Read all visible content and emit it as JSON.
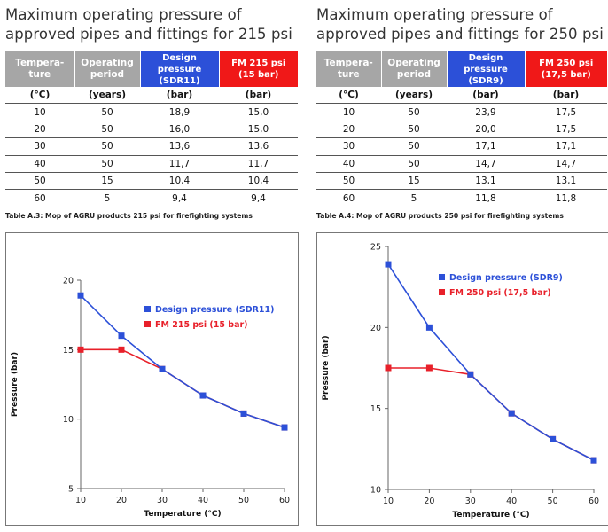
{
  "colors": {
    "blue": "#2c50d8",
    "red": "#e8202a",
    "gray_header": "#a6a6a6"
  },
  "left": {
    "title_line1": "Maximum operating pressure of",
    "title_line2": "approved pipes and fittings for 215 psi",
    "table": {
      "headers": [
        [
          "Tempera-",
          "ture"
        ],
        [
          "Operating",
          "period"
        ],
        [
          "Design pressure",
          "(SDR11)"
        ],
        [
          "FM 215 psi",
          "(15 bar)"
        ]
      ],
      "units": [
        "(°C)",
        "(years)",
        "(bar)",
        "(bar)"
      ],
      "rows": [
        [
          "10",
          "50",
          "18,9",
          "15,0"
        ],
        [
          "20",
          "50",
          "16,0",
          "15,0"
        ],
        [
          "30",
          "50",
          "13,6",
          "13,6"
        ],
        [
          "40",
          "50",
          "11,7",
          "11,7"
        ],
        [
          "50",
          "15",
          "10,4",
          "10,4"
        ],
        [
          "60",
          "5",
          "9,4",
          "9,4"
        ]
      ]
    },
    "caption": "Table A.3:  Mop of AGRU products 215 psi for firefighting systems"
  },
  "right": {
    "title_line1": "Maximum operating pressure of",
    "title_line2": "approved pipes and fittings for 250 psi",
    "table": {
      "headers": [
        [
          "Tempera-",
          "ture"
        ],
        [
          "Operating",
          "period"
        ],
        [
          "Design pressure",
          "(SDR9)"
        ],
        [
          "FM 250 psi",
          "(17,5  bar)"
        ]
      ],
      "units": [
        "(°C)",
        "(years)",
        "(bar)",
        "(bar)"
      ],
      "rows": [
        [
          "10",
          "50",
          "23,9",
          "17,5"
        ],
        [
          "20",
          "50",
          "20,0",
          "17,5"
        ],
        [
          "30",
          "50",
          "17,1",
          "17,1"
        ],
        [
          "40",
          "50",
          "14,7",
          "14,7"
        ],
        [
          "50",
          "15",
          "13,1",
          "13,1"
        ],
        [
          "60",
          "5",
          "11,8",
          "11,8"
        ]
      ]
    },
    "caption": "Table A.4:  Mop of AGRU products 250 psi for firefighting systems"
  },
  "chart_data": [
    {
      "type": "line",
      "xlabel": "Temperature (°C)",
      "ylabel": "Pressure (bar)",
      "xlim": [
        10,
        60
      ],
      "ylim": [
        5,
        20
      ],
      "xticks": [
        10,
        20,
        30,
        40,
        50,
        60
      ],
      "yticks": [
        5,
        10,
        15,
        20
      ],
      "grid": false,
      "legend_position": "upper-right",
      "series": [
        {
          "name": "Design pressure (SDR11)",
          "color": "#2c50d8",
          "x": [
            10,
            20,
            30,
            40,
            50,
            60
          ],
          "y": [
            18.9,
            16.0,
            13.6,
            11.7,
            10.4,
            9.4
          ]
        },
        {
          "name": "FM 215 psi (15 bar)",
          "color": "#e8202a",
          "x": [
            10,
            20,
            30,
            40,
            50,
            60
          ],
          "y": [
            15.0,
            15.0,
            13.6,
            11.7,
            10.4,
            9.4
          ]
        }
      ]
    },
    {
      "type": "line",
      "xlabel": "Temperature (°C)",
      "ylabel": "Pressure (bar)",
      "xlim": [
        10,
        60
      ],
      "ylim": [
        10,
        25
      ],
      "xticks": [
        10,
        20,
        30,
        40,
        50,
        60
      ],
      "yticks": [
        10,
        15,
        20,
        25
      ],
      "grid": false,
      "legend_position": "upper-right",
      "series": [
        {
          "name": "Design pressure (SDR9)",
          "color": "#2c50d8",
          "x": [
            10,
            20,
            30,
            40,
            50,
            60
          ],
          "y": [
            23.9,
            20.0,
            17.1,
            14.7,
            13.1,
            11.8
          ]
        },
        {
          "name": "FM 250 psi (17,5 bar)",
          "color": "#e8202a",
          "x": [
            10,
            20,
            30,
            40,
            50,
            60
          ],
          "y": [
            17.5,
            17.5,
            17.1,
            14.7,
            13.1,
            11.8
          ]
        }
      ]
    }
  ]
}
